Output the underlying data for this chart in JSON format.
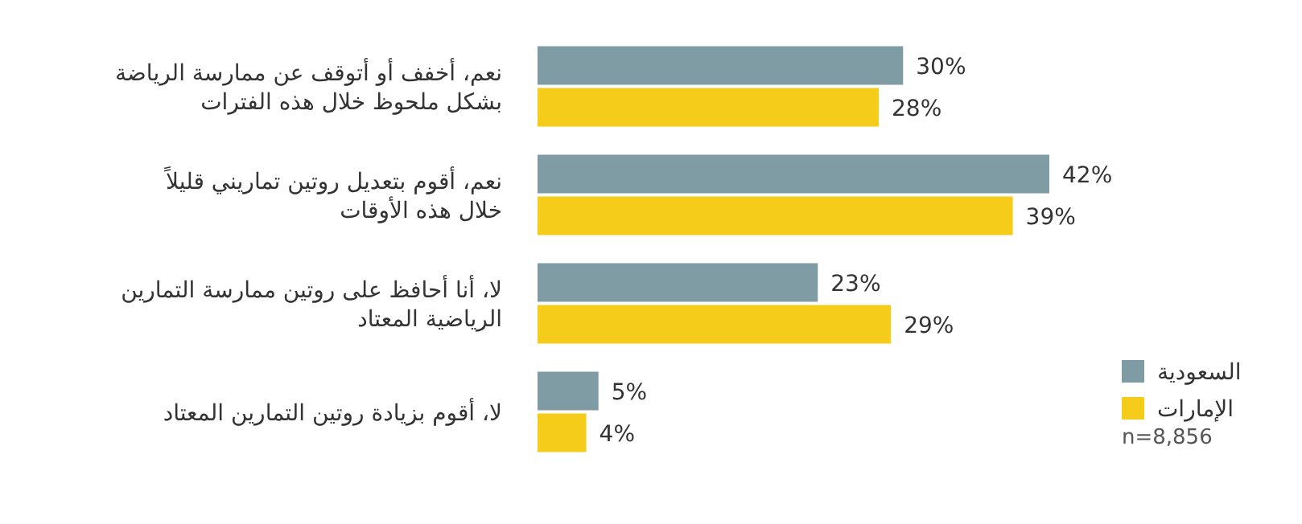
{
  "chart_data": {
    "type": "bar",
    "orientation": "horizontal",
    "categories": [
      "نعم، أخفف أو أتوقف عن ممارسة الرياضة\nبشكل ملحوظ خلال هذه الفترات",
      "نعم، أقوم بتعديل روتين تماريني قليلاً\nخلال هذه الأوقات",
      "لا، أنا أحافظ على روتين ممارسة التمارين\nالرياضية المعتاد",
      "لا، أقوم بزيادة روتين التمارين المعتاد"
    ],
    "series": [
      {
        "name": "السعودية",
        "color": "#7f9ba4",
        "values": [
          30,
          42,
          23,
          5
        ],
        "value_labels": [
          "30%",
          "42%",
          "23%",
          "5%"
        ]
      },
      {
        "name": "الإمارات",
        "color": "#f5cc1a",
        "values": [
          28,
          39,
          29,
          4
        ],
        "value_labels": [
          "28%",
          "39%",
          "29%",
          "4%"
        ]
      }
    ],
    "legend": "right",
    "annotations": [
      "n=8,856"
    ]
  }
}
